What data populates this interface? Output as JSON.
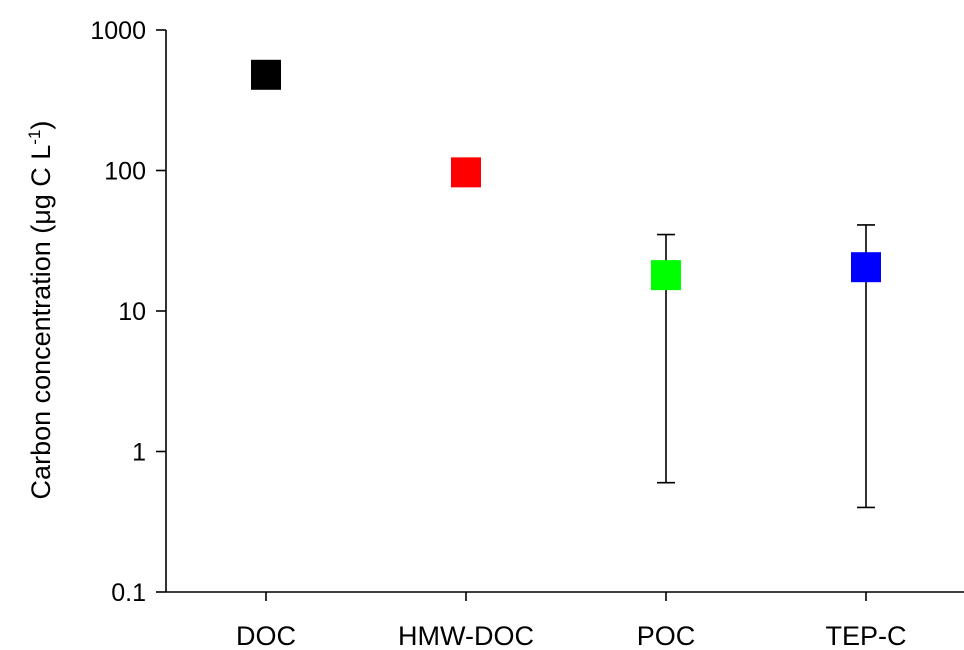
{
  "chart_data": {
    "type": "scatter",
    "ylabel": "Carbon concentration (μg C L",
    "ylabel_unit_sup": "-1",
    "ylabel_close": ")",
    "yscale": "log",
    "ylim": [
      0.1,
      1000
    ],
    "yticks": [
      0.1,
      1,
      10,
      100,
      1000
    ],
    "ytick_labels": [
      "0.1",
      "1",
      "10",
      "100",
      "1000"
    ],
    "categories": [
      "DOC",
      "HMW-DOC",
      "POC",
      "TEP-C"
    ],
    "points": [
      {
        "category": "DOC",
        "value": 480,
        "err_low": null,
        "err_high": null,
        "color": "#000000"
      },
      {
        "category": "HMW-DOC",
        "value": 97,
        "err_low": null,
        "err_high": null,
        "color": "#ff0000"
      },
      {
        "category": "POC",
        "value": 18,
        "err_low": 0.6,
        "err_high": 35,
        "color": "#00ff00"
      },
      {
        "category": "TEP-C",
        "value": 20.5,
        "err_low": 0.4,
        "err_high": 41,
        "color": "#0000ff"
      }
    ],
    "grid": false,
    "legend": "none",
    "marker": "square"
  }
}
